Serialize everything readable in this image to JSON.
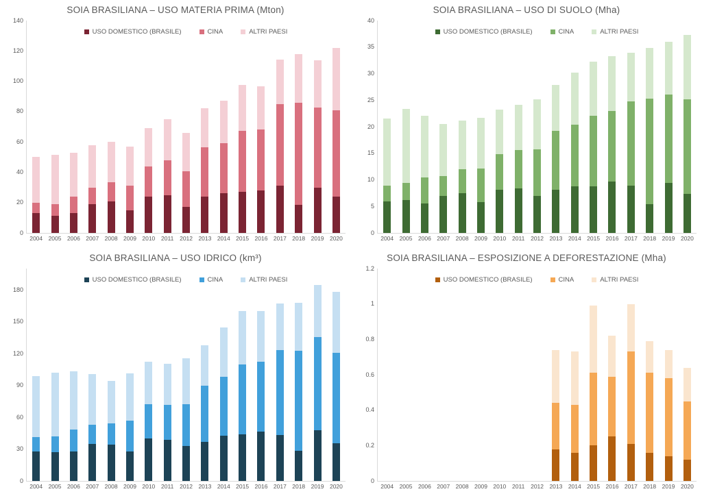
{
  "styles": {
    "background": "#FFFFFF",
    "axis_line_color": "#D9D9D9",
    "text_color": "#595959"
  },
  "chart_data": [
    {
      "type": "bar",
      "stacked": true,
      "title": "SOIA BRASILIANA – USO MATERIA PRIMA (Mton)",
      "ylabel": "Mton",
      "categories": [
        "2004",
        "2005",
        "2006",
        "2007",
        "2008",
        "2009",
        "2010",
        "2011",
        "2012",
        "2013",
        "2014",
        "2015",
        "2016",
        "2017",
        "2018",
        "2019",
        "2020"
      ],
      "series": [
        {
          "name": "USO DOMESTICO (BRASILE)",
          "color": "#7B2433",
          "values": [
            13,
            11.5,
            13,
            19,
            21,
            15,
            24,
            25,
            17,
            24,
            26,
            27,
            28,
            31,
            18.5,
            30,
            24
          ]
        },
        {
          "name": "CINA",
          "color": "#D9707E",
          "values": [
            7,
            7.5,
            11,
            11,
            12.5,
            16,
            20,
            23,
            23.5,
            32.5,
            33,
            40.5,
            40,
            54,
            67.5,
            52.5,
            57
          ]
        },
        {
          "name": "ALTRI PAESI",
          "color": "#F4CFD5",
          "values": [
            30,
            32.5,
            29,
            28,
            26.5,
            26,
            25,
            27,
            25.5,
            25.5,
            28,
            30,
            28.5,
            29.5,
            32,
            31.5,
            41
          ]
        }
      ],
      "ylim": [
        0,
        140
      ],
      "yticks": [
        0,
        20,
        40,
        60,
        80,
        100,
        120,
        140
      ],
      "ymax_render": 140,
      "legend_position": "top",
      "grid": false
    },
    {
      "type": "bar",
      "stacked": true,
      "title": "SOIA BRASILIANA – USO DI SUOLO (Mha)",
      "ylabel": "Mha",
      "categories": [
        "2004",
        "2005",
        "2006",
        "2007",
        "2008",
        "2009",
        "2010",
        "2011",
        "2012",
        "2013",
        "2014",
        "2015",
        "2016",
        "2017",
        "2018",
        "2019",
        "2020"
      ],
      "series": [
        {
          "name": "USO DOMESTICO (BRASILE)",
          "color": "#3E6B33",
          "values": [
            5.9,
            6.2,
            5.6,
            7.0,
            7.5,
            5.8,
            8.2,
            8.4,
            7.0,
            8.1,
            8.8,
            8.8,
            9.7,
            8.9,
            5.4,
            9.4,
            7.4
          ]
        },
        {
          "name": "CINA",
          "color": "#7FB169",
          "values": [
            3.0,
            3.2,
            4.8,
            3.7,
            4.5,
            6.3,
            6.7,
            7.2,
            8.7,
            11.1,
            11.6,
            13.3,
            13.3,
            15.9,
            19.9,
            16.6,
            17.8
          ]
        },
        {
          "name": "ALTRI PAESI",
          "color": "#D5E8CD",
          "values": [
            12.7,
            14.0,
            11.7,
            9.8,
            9.2,
            9.6,
            8.4,
            8.5,
            9.4,
            8.7,
            9.8,
            10.2,
            10.3,
            9.2,
            9.6,
            10.0,
            12.1
          ]
        }
      ],
      "ylim": [
        0,
        40
      ],
      "yticks": [
        0,
        5,
        10,
        15,
        20,
        25,
        30,
        35,
        40
      ],
      "ymax_render": 40,
      "legend_position": "top",
      "grid": false
    },
    {
      "type": "bar",
      "stacked": true,
      "title": "SOIA BRASILIANA – USO IDRICO (km³)",
      "ylabel": "km³",
      "categories": [
        "2004",
        "2005",
        "2006",
        "2007",
        "2008",
        "2009",
        "2010",
        "2011",
        "2012",
        "2013",
        "2014",
        "2015",
        "2016",
        "2017",
        "2018",
        "2019",
        "2020"
      ],
      "series": [
        {
          "name": "USO DOMESTICO (BRASILE)",
          "color": "#1D4356",
          "values": [
            27.5,
            27,
            27.5,
            35,
            34,
            28,
            40,
            39,
            33,
            37,
            42.5,
            44,
            46.5,
            43.5,
            28.5,
            47.5,
            35.5
          ]
        },
        {
          "name": "CINA",
          "color": "#41A0DB",
          "values": [
            14,
            15,
            21,
            18,
            20.5,
            28.5,
            32,
            32.5,
            39.5,
            52.5,
            55.5,
            66,
            66,
            79.5,
            94,
            88,
            85.5
          ]
        },
        {
          "name": "ALTRI PAESI",
          "color": "#C5DFF2",
          "values": [
            57.5,
            60,
            55,
            47.5,
            40,
            45,
            40,
            39,
            43,
            38.5,
            46.5,
            50,
            47.5,
            44,
            45,
            49,
            57
          ]
        }
      ],
      "ylim": [
        0,
        180
      ],
      "yticks": [
        0,
        30,
        60,
        90,
        120,
        150,
        180
      ],
      "ymax_render": 200,
      "legend_position": "top",
      "grid": false
    },
    {
      "type": "bar",
      "stacked": true,
      "title": "SOIA BRASILIANA – ESPOSIZIONE A DEFORESTAZIONE (Mha)",
      "ylabel": "Mha",
      "categories": [
        "2004",
        "2005",
        "2006",
        "2007",
        "2008",
        "2009",
        "2010",
        "2011",
        "2012",
        "2013",
        "2014",
        "2015",
        "2016",
        "2017",
        "2018",
        "2019",
        "2020"
      ],
      "series": [
        {
          "name": "USO DOMESTICO (BRASILE)",
          "color": "#B25F0E",
          "values": [
            0,
            0,
            0,
            0,
            0,
            0,
            0,
            0,
            0,
            0.18,
            0.16,
            0.2,
            0.25,
            0.21,
            0.16,
            0.14,
            0.12
          ]
        },
        {
          "name": "CINA",
          "color": "#F5A855",
          "values": [
            0,
            0,
            0,
            0,
            0,
            0,
            0,
            0,
            0,
            0.26,
            0.27,
            0.41,
            0.34,
            0.52,
            0.45,
            0.44,
            0.33
          ]
        },
        {
          "name": "ALTRI PAESI",
          "color": "#FAE5CE",
          "values": [
            0,
            0,
            0,
            0,
            0,
            0,
            0,
            0,
            0,
            0.3,
            0.3,
            0.38,
            0.23,
            0.27,
            0.18,
            0.16,
            0.19
          ]
        }
      ],
      "ylim": [
        0,
        1.2
      ],
      "yticks": [
        0,
        0.2,
        0.4,
        0.6,
        0.8,
        1,
        1.2
      ],
      "ymax_render": 1.2,
      "legend_position": "top",
      "grid": false
    }
  ]
}
